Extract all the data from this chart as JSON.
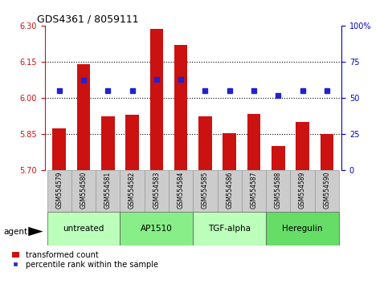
{
  "title": "GDS4361 / 8059111",
  "samples": [
    "GSM554579",
    "GSM554580",
    "GSM554581",
    "GSM554582",
    "GSM554583",
    "GSM554584",
    "GSM554585",
    "GSM554586",
    "GSM554587",
    "GSM554588",
    "GSM554589",
    "GSM554590"
  ],
  "bar_values": [
    5.875,
    6.14,
    5.925,
    5.93,
    6.285,
    6.22,
    5.925,
    5.855,
    5.935,
    5.8,
    5.9,
    5.85
  ],
  "percentile_values": [
    55,
    62,
    55,
    55,
    63,
    63,
    55,
    55,
    55,
    52,
    55,
    55
  ],
  "y_min": 5.7,
  "y_max": 6.3,
  "y_ticks": [
    5.7,
    5.85,
    6.0,
    6.15,
    6.3
  ],
  "right_y_ticks": [
    0,
    25,
    50,
    75,
    100
  ],
  "right_y_labels": [
    "0",
    "25",
    "50",
    "75",
    "100%"
  ],
  "dotted_lines": [
    5.85,
    6.0,
    6.15
  ],
  "bar_color": "#cc1111",
  "dot_color": "#2222cc",
  "groups": [
    {
      "label": "untreated",
      "start": 0,
      "end": 2,
      "color": "#bbffbb"
    },
    {
      "label": "AP1510",
      "start": 3,
      "end": 5,
      "color": "#88ee88"
    },
    {
      "label": "TGF-alpha",
      "start": 6,
      "end": 8,
      "color": "#bbffbb"
    },
    {
      "label": "Heregulin",
      "start": 9,
      "end": 11,
      "color": "#66dd66"
    }
  ],
  "legend_bar_label": "transformed count",
  "legend_dot_label": "percentile rank within the sample",
  "agent_label": "agent",
  "left_tick_color": "#cc1111",
  "right_tick_color": "#0000cc",
  "background_color": "#ffffff",
  "plot_bg_color": "#ffffff",
  "label_bg_color": "#cccccc"
}
